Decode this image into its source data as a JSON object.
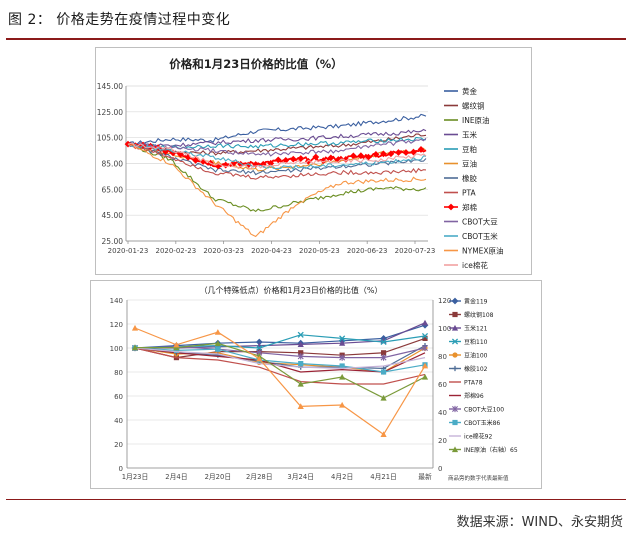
{
  "figure_title": "图 2：   价格走势在疫情过程中变化",
  "source": "数据来源：WIND、永安期货",
  "colors": {
    "accent": "#8b1a1a"
  },
  "chart_data": [
    {
      "type": "line",
      "title": "价格和1月23日价格的比值（%）",
      "xlabel": "",
      "ylabel": "",
      "ylim": [
        25,
        145
      ],
      "yticks": [
        "145.00",
        "125.00",
        "105.00",
        "85.00",
        "65.00",
        "45.00",
        "25.00"
      ],
      "x_ticks": [
        "2020-01-23",
        "2020-02-23",
        "2020-03-23",
        "2020-04-23",
        "2020-05-23",
        "2020-06-23",
        "2020-07-23"
      ],
      "grid": true,
      "legend": "right",
      "x_count": 8,
      "series": [
        {
          "name": "黄金",
          "color": "#3a5fa0",
          "values": [
            100,
            104,
            103,
            110,
            112,
            114,
            118,
            122
          ]
        },
        {
          "name": "螺纹钢",
          "color": "#8b3a3a",
          "values": [
            100,
            94,
            93,
            95,
            97,
            99,
            103,
            108
          ]
        },
        {
          "name": "INE原油",
          "color": "#6b8e23",
          "values": [
            100,
            88,
            58,
            48,
            55,
            62,
            66,
            65
          ]
        },
        {
          "name": "玉米",
          "color": "#6a4c93",
          "values": [
            100,
            99,
            101,
            103,
            104,
            106,
            108,
            110
          ]
        },
        {
          "name": "豆粕",
          "color": "#2a9db5",
          "values": [
            100,
            97,
            99,
            98,
            100,
            101,
            103,
            104
          ]
        },
        {
          "name": "豆油",
          "color": "#e8912d",
          "values": [
            100,
            92,
            86,
            80,
            83,
            87,
            93,
            96
          ]
        },
        {
          "name": "橡胶",
          "color": "#4f6d96",
          "values": [
            100,
            90,
            80,
            78,
            80,
            83,
            85,
            88
          ]
        },
        {
          "name": "PTA",
          "color": "#c0504d",
          "values": [
            100,
            90,
            78,
            74,
            76,
            78,
            78,
            80
          ]
        },
        {
          "name": "郑棉",
          "color": "#ff0000",
          "marker": "diamond",
          "values": [
            100,
            95,
            84,
            85,
            88,
            89,
            92,
            96
          ]
        },
        {
          "name": "CBOT大豆",
          "color": "#8064a2",
          "values": [
            100,
            97,
            95,
            92,
            93,
            95,
            100,
            103
          ]
        },
        {
          "name": "CBOT玉米",
          "color": "#4bacc6",
          "values": [
            100,
            95,
            90,
            83,
            82,
            84,
            86,
            90
          ]
        },
        {
          "name": "NYMEX原油",
          "color": "#f79646",
          "values": [
            100,
            85,
            55,
            28,
            55,
            70,
            72,
            73
          ]
        },
        {
          "name": "ice棉花",
          "color": "#f2a2a2",
          "values": [
            100,
            96,
            85,
            82,
            86,
            87,
            88,
            92
          ]
        }
      ]
    },
    {
      "type": "line",
      "title": "（几个特殊低点）价格和1月23日价格的比值（%）",
      "xlabel": "",
      "ylabel": "",
      "ylim": [
        0,
        140
      ],
      "yticks": [
        "140",
        "120",
        "100",
        "80",
        "60",
        "40",
        "20",
        "0"
      ],
      "y2lim": [
        0,
        120
      ],
      "y2ticks": [
        "120",
        "100",
        "80",
        "60",
        "40",
        "20",
        "0"
      ],
      "categories": [
        "1月23日",
        "2月4日",
        "2月20日",
        "2月28日",
        "3月24日",
        "4月2日",
        "4月21日",
        "最新"
      ],
      "note": "商品旁的数字代表最新值",
      "grid": true,
      "legend": "right",
      "series": [
        {
          "name": "黄金119",
          "color": "#3a5fa0",
          "marker": "diamond",
          "values": [
            100,
            102,
            104,
            105,
            104,
            106,
            108,
            119
          ]
        },
        {
          "name": "螺纹钢108",
          "color": "#8b3a3a",
          "marker": "square",
          "values": [
            100,
            92,
            97,
            97,
            96,
            94,
            96,
            108
          ]
        },
        {
          "name": "玉米121",
          "color": "#6a4c93",
          "marker": "triangle",
          "values": [
            100,
            100,
            101,
            102,
            103,
            104,
            106,
            121
          ]
        },
        {
          "name": "豆粕110",
          "color": "#2a9db5",
          "marker": "x",
          "values": [
            100,
            101,
            102,
            100,
            111,
            108,
            105,
            110
          ]
        },
        {
          "name": "豆油100",
          "color": "#e8912d",
          "marker": "circle",
          "values": [
            100,
            95,
            96,
            88,
            86,
            84,
            80,
            100
          ]
        },
        {
          "name": "橡胶102",
          "color": "#4f6d96",
          "marker": "plus",
          "values": [
            100,
            96,
            94,
            89,
            84,
            84,
            83,
            102
          ]
        },
        {
          "name": "PTA78",
          "color": "#c0504d",
          "values": [
            100,
            92,
            90,
            84,
            72,
            70,
            70,
            78
          ]
        },
        {
          "name": "郑棉96",
          "color": "#9b2335",
          "values": [
            100,
            96,
            93,
            90,
            80,
            82,
            80,
            96
          ]
        },
        {
          "name": "CBOT大豆100",
          "color": "#8064a2",
          "marker": "star",
          "values": [
            100,
            101,
            99,
            96,
            93,
            92,
            92,
            100
          ]
        },
        {
          "name": "CBOT玉米86",
          "color": "#4bacc6",
          "marker": "square",
          "values": [
            100,
            98,
            99,
            90,
            87,
            85,
            80,
            86
          ]
        },
        {
          "name": "ice棉花92",
          "color": "#c6b3d8",
          "values": [
            100,
            97,
            95,
            87,
            84,
            83,
            85,
            92
          ]
        },
        {
          "name": "INE原油（右轴）65",
          "color": "#7a9a3a",
          "marker": "triangle",
          "axis": "right",
          "values": [
            86,
            86,
            89,
            80,
            60,
            65,
            50,
            65
          ]
        },
        {
          "name": "",
          "color": "#f79646",
          "marker": "triangle",
          "axis": "right",
          "values": [
            100,
            88,
            97,
            78,
            44,
            45,
            24,
            73
          ]
        }
      ]
    }
  ]
}
